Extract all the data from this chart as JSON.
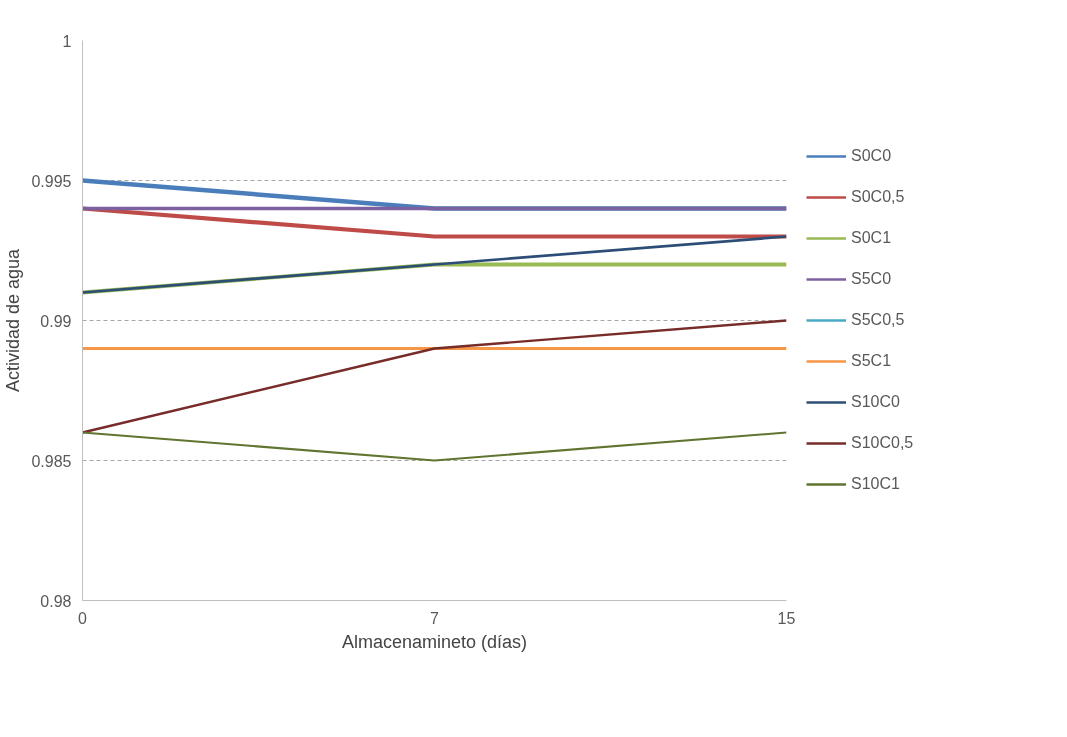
{
  "chart_data": {
    "type": "line",
    "xlabel": "Almacenamineto (días)",
    "ylabel": "Actividad de agua",
    "categories": [
      "0",
      "7",
      "15"
    ],
    "series": [
      {
        "name": "S0C0",
        "color": "#4a7ebb",
        "values": [
          0.995,
          0.994,
          0.994
        ]
      },
      {
        "name": "S0C0,5",
        "color": "#be4b48",
        "values": [
          0.994,
          0.993,
          0.993
        ]
      },
      {
        "name": "S0C1",
        "color": "#98b954",
        "values": [
          0.991,
          0.992,
          0.992
        ]
      },
      {
        "name": "S5C0",
        "color": "#7d60a0",
        "values": [
          0.994,
          0.994,
          0.994
        ]
      },
      {
        "name": "S5C0,5",
        "color": "#46aac5",
        "values": [
          null,
          null,
          null
        ]
      },
      {
        "name": "S5C1",
        "color": "#f79646",
        "values": [
          0.989,
          0.989,
          0.989
        ]
      },
      {
        "name": "S10C0",
        "color": "#2c4d75",
        "values": [
          0.991,
          0.992,
          0.993
        ]
      },
      {
        "name": "S10C0,5",
        "color": "#772c2a",
        "values": [
          0.986,
          0.989,
          0.99
        ]
      },
      {
        "name": "S10C1",
        "color": "#5f7530",
        "values": [
          0.986,
          0.985,
          0.986
        ]
      }
    ],
    "ylim": [
      0.98,
      1
    ],
    "yticks": [
      0.98,
      0.985,
      0.99,
      0.995,
      1
    ],
    "grid": "y",
    "legend": "right",
    "marker": "none",
    "line_style": "solid"
  }
}
